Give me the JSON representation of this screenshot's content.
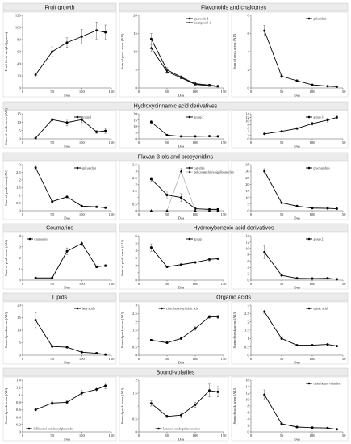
{
  "bands": [
    {
      "label": "Fruit growth"
    },
    {
      "label": "Flavonoids and chalcones"
    },
    {
      "label": "Hydroxycinnamic acid derivatives"
    },
    {
      "label": "Flavan-3-ols and procyanidins"
    },
    {
      "label": "Coumarins"
    },
    {
      "label": "Hydroxybenzoic acid derivatives"
    },
    {
      "label": "Lipids"
    },
    {
      "label": "Organic acids"
    },
    {
      "label": "Bound-volatiles"
    }
  ],
  "chart_data": [
    {
      "type": "line",
      "xlabel": "Daa",
      "ylabel": "Fruit fresh weight (grams)",
      "xticks": [
        0,
        50,
        100,
        150
      ],
      "xlim": [
        0,
        150
      ],
      "ylim": [
        0,
        120
      ],
      "yticks": [
        0,
        20,
        40,
        60,
        80,
        100,
        120
      ],
      "legend": "none",
      "series": [
        {
          "name": "",
          "marker": "circle",
          "x": [
            22,
            50,
            75,
            100,
            125,
            140
          ],
          "y": [
            22,
            60,
            75,
            85,
            95,
            92
          ],
          "err": [
            3,
            8,
            8,
            12,
            14,
            12
          ]
        }
      ]
    },
    {
      "type": "line",
      "xlabel": "Daa",
      "ylabel": "Sum of peak areas (AU)",
      "xticks": [
        0,
        50,
        100,
        150
      ],
      "xlim": [
        0,
        150
      ],
      "ylim": [
        0,
        20
      ],
      "yticks": [
        0,
        5,
        10,
        15,
        20
      ],
      "legend": "top-right",
      "series": [
        {
          "name": "quercetin-d",
          "marker": "circle",
          "x": [
            22,
            50,
            75,
            100,
            125,
            140
          ],
          "y": [
            13.5,
            5,
            3,
            1.2,
            0.8,
            0.5
          ],
          "err": [
            1.5,
            0.6,
            0.4,
            0.2,
            0.1,
            0.1
          ]
        },
        {
          "name": "kaempferol-d",
          "marker": "triangle",
          "x": [
            22,
            50,
            75,
            100,
            125,
            140
          ],
          "y": [
            11,
            4.5,
            2.8,
            1,
            0.6,
            0.4
          ],
          "err": [
            1,
            0.5,
            0.3,
            0.2,
            0.1,
            0.1
          ]
        }
      ]
    },
    {
      "type": "line",
      "xlabel": "Daa",
      "ylabel": "Sum of peak areas (AU)",
      "xticks": [
        0,
        50,
        100,
        150
      ],
      "xlim": [
        0,
        150
      ],
      "ylim": [
        0,
        8
      ],
      "yticks": [
        0,
        2,
        4,
        6,
        8
      ],
      "legend": "top-right",
      "series": [
        {
          "name": "phloridzin",
          "marker": "circle",
          "x": [
            22,
            50,
            75,
            100,
            125,
            140
          ],
          "y": [
            6.3,
            1.3,
            0.8,
            0.35,
            0.2,
            0.15
          ],
          "err": [
            0.6,
            0.2,
            0.1,
            0.05,
            0.05,
            0.05
          ]
        }
      ]
    },
    {
      "type": "line",
      "xlabel": "Daa",
      "ylabel": "Sum of peak areas (AU)",
      "xticks": [
        0,
        50,
        100,
        150
      ],
      "xlim": [
        0,
        150
      ],
      "ylim": [
        0,
        15
      ],
      "yticks": [
        0,
        5,
        10,
        15
      ],
      "legend": "top-right",
      "series": [
        {
          "name": "group 1",
          "marker": "circle",
          "x": [
            22,
            50,
            75,
            100,
            125,
            140
          ],
          "y": [
            0.5,
            11.5,
            9.8,
            11.5,
            4.2,
            4.8
          ],
          "err": [
            0.1,
            0.8,
            2,
            1.8,
            0.9,
            1.5
          ]
        }
      ]
    },
    {
      "type": "line",
      "xlabel": "Daa",
      "ylabel": "",
      "xticks": [
        0,
        50,
        100,
        150
      ],
      "xlim": [
        0,
        150
      ],
      "ylim": [
        0,
        20
      ],
      "yticks": [
        0,
        5,
        10,
        15,
        20
      ],
      "legend": "top-right",
      "series": [
        {
          "name": "group 2",
          "marker": "circle",
          "x": [
            22,
            50,
            75,
            100,
            125,
            140
          ],
          "y": [
            13.5,
            3,
            2,
            2,
            2.2,
            2
          ],
          "err": [
            1.2,
            0.3,
            0.2,
            0.2,
            0.2,
            0.2
          ]
        }
      ]
    },
    {
      "type": "line",
      "xlabel": "Daa",
      "ylabel": "",
      "xticks": [
        0,
        50,
        100,
        150
      ],
      "xlim": [
        0,
        150
      ],
      "ylim": [
        0,
        14
      ],
      "yticks": [
        0,
        2,
        4,
        6,
        8,
        10,
        12,
        14
      ],
      "legend": "top-right",
      "series": [
        {
          "name": "group 3",
          "marker": "circle",
          "x": [
            22,
            50,
            75,
            100,
            125,
            140
          ],
          "y": [
            2.8,
            4.2,
            5.8,
            8.5,
            10.5,
            12
          ],
          "err": [
            0.2,
            0.3,
            0.4,
            0.8,
            1.1,
            0.8
          ]
        }
      ]
    },
    {
      "type": "line",
      "xlabel": "Daa",
      "ylabel": "Sum of peak areas (AU)",
      "xticks": [
        0,
        50,
        100,
        150
      ],
      "xlim": [
        0,
        150
      ],
      "ylim": [
        0,
        3
      ],
      "yticks": [
        0,
        0.5,
        1,
        1.5,
        2,
        2.5,
        3
      ],
      "legend": "top-right",
      "series": [
        {
          "name": "epicatechin",
          "marker": "circle",
          "x": [
            22,
            50,
            75,
            100,
            125,
            140
          ],
          "y": [
            2.8,
            0.6,
            0.9,
            0.3,
            0.25,
            0.2
          ],
          "err": [
            0.1,
            0.05,
            0.05,
            0.05,
            0.05,
            0.05
          ]
        }
      ]
    },
    {
      "type": "line",
      "xlabel": "Daa",
      "ylabel": "",
      "xticks": [
        0,
        50,
        100,
        150
      ],
      "xlim": [
        0,
        150
      ],
      "ylim": [
        0,
        3.5
      ],
      "yticks": [
        0,
        0.5,
        1,
        1.5,
        2,
        2.5,
        3,
        3.5
      ],
      "legend": "top-right",
      "series": [
        {
          "name": "catechin",
          "marker": "circle",
          "x": [
            22,
            50,
            75,
            100,
            125,
            140
          ],
          "y": [
            2.4,
            1.2,
            1,
            0.15,
            0.1,
            0.1
          ],
          "err": [
            0.15,
            0.3,
            0.3,
            0.05,
            0.05,
            0.05
          ]
        },
        {
          "name": "pelicocatechin/epigallocatechin",
          "marker": "triangle",
          "gray": true,
          "x": [
            22,
            50,
            75,
            100,
            125,
            140
          ],
          "y": [
            0,
            0,
            3,
            0,
            0,
            0
          ],
          "err": [
            0,
            0,
            0.2,
            0,
            0,
            0
          ]
        }
      ]
    },
    {
      "type": "line",
      "xlabel": "Daa",
      "ylabel": "",
      "xticks": [
        0,
        50,
        100,
        150
      ],
      "xlim": [
        0,
        150
      ],
      "ylim": [
        0,
        35
      ],
      "yticks": [
        0,
        5,
        10,
        15,
        20,
        25,
        30,
        35
      ],
      "legend": "top-right",
      "series": [
        {
          "name": "procyanidins",
          "marker": "circle",
          "x": [
            22,
            50,
            75,
            100,
            125,
            140
          ],
          "y": [
            30,
            6,
            3.5,
            2,
            1.8,
            1.5
          ],
          "err": [
            2,
            0.5,
            0.3,
            0.2,
            0.2,
            0.2
          ]
        }
      ]
    },
    {
      "type": "line",
      "xlabel": "Daa",
      "ylabel": "Sum of peak areas (AU)",
      "xticks": [
        0,
        50,
        100,
        150
      ],
      "xlim": [
        0,
        150
      ],
      "ylim": [
        0,
        4
      ],
      "yticks": [
        0,
        1,
        2,
        3,
        4
      ],
      "legend": "top-left",
      "series": [
        {
          "name": "coumarins",
          "marker": "circle",
          "x": [
            22,
            50,
            75,
            100,
            125,
            140
          ],
          "y": [
            0.2,
            0.2,
            2.6,
            3.3,
            1.2,
            1.3
          ],
          "err": [
            0.02,
            0.02,
            0.3,
            0.2,
            0.1,
            0.1
          ]
        }
      ]
    },
    {
      "type": "line",
      "xlabel": "Daa",
      "ylabel": "Sum of peak areas (AU)",
      "xticks": [
        0,
        50,
        100,
        150
      ],
      "xlim": [
        0,
        150
      ],
      "ylim": [
        0,
        6
      ],
      "yticks": [
        0,
        1,
        2,
        3,
        4,
        5,
        6
      ],
      "legend": "top-right",
      "series": [
        {
          "name": "group 1",
          "marker": "circle",
          "x": [
            22,
            50,
            75,
            100,
            125,
            140
          ],
          "y": [
            4.4,
            1.8,
            2.1,
            2.4,
            2.8,
            2.9
          ],
          "err": [
            0.5,
            0.1,
            0.1,
            0.1,
            0.2,
            0.1
          ]
        }
      ]
    },
    {
      "type": "line",
      "xlabel": "Daa",
      "ylabel": "",
      "xticks": [
        0,
        50,
        100,
        150
      ],
      "xlim": [
        0,
        150
      ],
      "ylim": [
        0,
        14
      ],
      "yticks": [
        0,
        2,
        4,
        6,
        8,
        10,
        12,
        14
      ],
      "legend": "top-right",
      "series": [
        {
          "name": "group 2",
          "marker": "circle",
          "x": [
            22,
            50,
            75,
            100,
            125,
            140
          ],
          "y": [
            8.8,
            1.5,
            0.6,
            0.5,
            0.6,
            0.3
          ],
          "err": [
            2,
            0.2,
            0.1,
            0.1,
            0.1,
            0.05
          ]
        }
      ]
    },
    {
      "type": "line",
      "xlabel": "Daa",
      "ylabel": "Sum of peak areas (AU)",
      "xticks": [
        0,
        50,
        100,
        150
      ],
      "xlim": [
        0,
        150
      ],
      "ylim": [
        0,
        20
      ],
      "yticks": [
        0,
        5,
        10,
        15,
        20
      ],
      "legend": "top-right",
      "series": [
        {
          "name": "fatty acids",
          "marker": "circle",
          "x": [
            22,
            50,
            75,
            100,
            125,
            140
          ],
          "y": [
            14,
            3.5,
            3.2,
            1.2,
            0.8,
            0.3
          ],
          "err": [
            3,
            0.4,
            0.3,
            0.2,
            0.1,
            0.05
          ]
        }
      ]
    },
    {
      "type": "line",
      "xlabel": "Daa",
      "ylabel": "Sum of peak areas (AU)",
      "xticks": [
        0,
        50,
        100,
        150
      ],
      "xlim": [
        0,
        150
      ],
      "ylim": [
        0,
        3
      ],
      "yticks": [
        0,
        0.5,
        1,
        1.5,
        2,
        2.5,
        3
      ],
      "legend": "top-center",
      "series": [
        {
          "name": "citric/isopropyl citric acid",
          "marker": "circle",
          "x": [
            22,
            50,
            75,
            100,
            125,
            140
          ],
          "y": [
            0.9,
            0.75,
            1,
            1.6,
            2.3,
            2.3
          ],
          "err": [
            0.05,
            0.05,
            0.05,
            0.1,
            0.1,
            0.1
          ]
        }
      ]
    },
    {
      "type": "line",
      "xlabel": "Daa",
      "ylabel": "Sum of peak areas (AU)",
      "xticks": [
        0,
        50,
        100,
        150
      ],
      "xlim": [
        0,
        150
      ],
      "ylim": [
        0,
        3
      ],
      "yticks": [
        0,
        0.5,
        1,
        1.5,
        2,
        2.5,
        3
      ],
      "legend": "top-right",
      "series": [
        {
          "name": "quinic acid",
          "marker": "circle",
          "x": [
            22,
            50,
            75,
            100,
            125,
            140
          ],
          "y": [
            2.6,
            1,
            0.6,
            0.6,
            0.65,
            0.55
          ],
          "err": [
            0.1,
            0.05,
            0.05,
            0.05,
            0.05,
            0.05
          ]
        }
      ]
    },
    {
      "type": "line",
      "xlabel": "Daa",
      "ylabel": "Sum of peak areas (AU)",
      "xticks": [
        0,
        50,
        100,
        150
      ],
      "xlim": [
        0,
        150
      ],
      "ylim": [
        0,
        1.4
      ],
      "yticks": [
        0,
        0.2,
        0.4,
        0.6,
        0.8,
        1,
        1.2,
        1.4
      ],
      "legend": "bottom-left",
      "series": [
        {
          "name": "3-Hexenol arabinosylglucoside",
          "marker": "circle",
          "x": [
            22,
            50,
            75,
            100,
            125,
            140
          ],
          "y": [
            0.6,
            0.78,
            0.8,
            1.05,
            1.15,
            1.25
          ],
          "err": [
            0.03,
            0.05,
            0.05,
            0.07,
            0.07,
            0.08
          ]
        }
      ]
    },
    {
      "type": "line",
      "xlabel": "Daa",
      "ylabel": "Sum of peak areas (AU)",
      "xticks": [
        0,
        50,
        100,
        150
      ],
      "xlim": [
        0,
        150
      ],
      "ylim": [
        0,
        2
      ],
      "yticks": [
        0,
        0.5,
        1,
        1.5,
        2
      ],
      "legend": "bottom-center",
      "series": [
        {
          "name": "Linalool oxide primeveroside",
          "marker": "circle",
          "x": [
            22,
            50,
            75,
            100,
            125,
            140
          ],
          "y": [
            1.1,
            0.6,
            0.65,
            1.05,
            1.6,
            1.55
          ],
          "err": [
            0.1,
            0.05,
            0.1,
            0.1,
            0.25,
            0.2
          ]
        }
      ]
    },
    {
      "type": "line",
      "xlabel": "Daa",
      "ylabel": "Sum of peak areas (AU)",
      "xticks": [
        0,
        50,
        100,
        150
      ],
      "xlim": [
        0,
        150
      ],
      "ylim": [
        0,
        16
      ],
      "yticks": [
        0,
        2,
        4,
        6,
        8,
        10,
        12,
        14,
        16
      ],
      "legend": "top-right",
      "series": [
        {
          "name": "other bound volatiles",
          "marker": "circle",
          "x": [
            22,
            50,
            75,
            100,
            125,
            140
          ],
          "y": [
            11.5,
            2.5,
            1.5,
            1.3,
            1.2,
            0.8
          ],
          "err": [
            1.5,
            0.3,
            0.2,
            0.15,
            0.1,
            0.1
          ]
        }
      ]
    }
  ]
}
